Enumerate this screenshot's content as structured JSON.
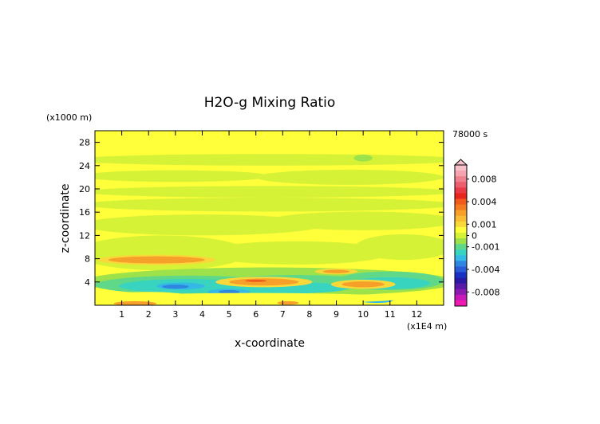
{
  "chart_data": {
    "type": "heatmap",
    "title": "H2O-g Mixing Ratio",
    "xlabel": "x-coordinate",
    "ylabel": "z-coordinate",
    "x_unit_label": "(x1E4 m)",
    "y_unit_label": "(x1000 m)",
    "time_label": "78000 s",
    "xlim": [
      0,
      13
    ],
    "ylim": [
      0,
      30
    ],
    "xticks": [
      "1",
      "2",
      "3",
      "4",
      "5",
      "6",
      "7",
      "8",
      "9",
      "10",
      "11",
      "12"
    ],
    "yticks": [
      "4",
      "8",
      "12",
      "16",
      "20",
      "24",
      "28"
    ],
    "colorbar": {
      "labels": [
        {
          "text": "0.008",
          "value": 0.008
        },
        {
          "text": "0.004",
          "value": 0.004
        },
        {
          "text": "0.001",
          "value": 0.001
        },
        {
          "text": "0",
          "value": 0.0
        },
        {
          "text": "-0.001",
          "value": -0.001
        },
        {
          "text": "-0.004",
          "value": -0.004
        },
        {
          "text": "-0.008",
          "value": -0.008
        }
      ],
      "levels": [
        {
          "value": 0.01,
          "color": "#f5c0c8"
        },
        {
          "value": 0.009,
          "color": "#f3a4ae"
        },
        {
          "value": 0.008,
          "color": "#ef808d"
        },
        {
          "value": 0.007,
          "color": "#ec5e6e"
        },
        {
          "value": 0.006,
          "color": "#ea3a48"
        },
        {
          "value": 0.005,
          "color": "#e8251e"
        },
        {
          "value": 0.004,
          "color": "#f05a1c"
        },
        {
          "value": 0.003,
          "color": "#f47c20"
        },
        {
          "value": 0.002,
          "color": "#f6a02a"
        },
        {
          "value": 0.0015,
          "color": "#f8bd34"
        },
        {
          "value": 0.001,
          "color": "#f9d83a"
        },
        {
          "value": 0.0005,
          "color": "#ffff3a"
        },
        {
          "value": 0.0,
          "color": "#d6f236"
        },
        {
          "value": -0.0005,
          "color": "#9de24a"
        },
        {
          "value": -0.001,
          "color": "#5fd88a"
        },
        {
          "value": -0.0015,
          "color": "#38d4c0"
        },
        {
          "value": -0.002,
          "color": "#34b8e6"
        },
        {
          "value": -0.003,
          "color": "#2e86e0"
        },
        {
          "value": -0.004,
          "color": "#2a5cd8"
        },
        {
          "value": -0.005,
          "color": "#1a32c4"
        },
        {
          "value": -0.006,
          "color": "#2a1aa6"
        },
        {
          "value": -0.007,
          "color": "#5a1aa8"
        },
        {
          "value": -0.008,
          "color": "#8a1ab0"
        },
        {
          "value": -0.009,
          "color": "#c81ab8"
        },
        {
          "value": -0.01,
          "color": "#f01ab0"
        }
      ]
    },
    "background_value_color": "#ffff3a",
    "regions": [
      {
        "xc": 6.5,
        "zc": 25.0,
        "rx": 7.5,
        "rz": 1.0,
        "color": "#d6f236"
      },
      {
        "xc": 3.0,
        "zc": 22.2,
        "rx": 3.5,
        "rz": 1.0,
        "color": "#d6f236"
      },
      {
        "xc": 9.5,
        "zc": 22.0,
        "rx": 3.5,
        "rz": 1.3,
        "color": "#d6f236"
      },
      {
        "xc": 6.5,
        "zc": 19.5,
        "rx": 7.0,
        "rz": 1.0,
        "color": "#d6f236"
      },
      {
        "xc": 6.5,
        "zc": 17.3,
        "rx": 7.0,
        "rz": 1.2,
        "color": "#d6f236"
      },
      {
        "xc": 4.0,
        "zc": 13.8,
        "rx": 4.5,
        "rz": 1.8,
        "color": "#d6f236"
      },
      {
        "xc": 10.0,
        "zc": 14.5,
        "rx": 3.5,
        "rz": 1.6,
        "color": "#d6f236"
      },
      {
        "xc": 2.5,
        "zc": 9.0,
        "rx": 3.2,
        "rz": 3.0,
        "color": "#d6f236"
      },
      {
        "xc": 7.5,
        "zc": 9.0,
        "rx": 3.5,
        "rz": 2.0,
        "color": "#d6f236"
      },
      {
        "xc": 11.5,
        "zc": 10.0,
        "rx": 1.8,
        "rz": 2.2,
        "color": "#d6f236"
      },
      {
        "xc": 6.5,
        "zc": 4.0,
        "rx": 7.0,
        "rz": 2.5,
        "color": "#9de24a"
      },
      {
        "xc": 3.5,
        "zc": 3.5,
        "rx": 3.5,
        "rz": 1.6,
        "color": "#5fd88a"
      },
      {
        "xc": 7.5,
        "zc": 3.8,
        "rx": 3.0,
        "rz": 1.4,
        "color": "#5fd88a"
      },
      {
        "xc": 11.0,
        "zc": 4.2,
        "rx": 2.0,
        "rz": 1.6,
        "color": "#5fd88a"
      },
      {
        "xc": 3.5,
        "zc": 3.3,
        "rx": 2.6,
        "rz": 1.2,
        "color": "#38d4c0"
      },
      {
        "xc": 7.0,
        "zc": 3.0,
        "rx": 2.5,
        "rz": 1.0,
        "color": "#38d4c0"
      },
      {
        "xc": 11.0,
        "zc": 3.8,
        "rx": 1.5,
        "rz": 1.0,
        "color": "#38d4c0"
      },
      {
        "xc": 3.2,
        "zc": 3.3,
        "rx": 0.9,
        "rz": 0.6,
        "color": "#34b8e6"
      },
      {
        "xc": 5.0,
        "zc": 2.3,
        "rx": 0.8,
        "rz": 0.5,
        "color": "#34b8e6"
      },
      {
        "xc": 3.0,
        "zc": 3.2,
        "rx": 0.5,
        "rz": 0.35,
        "color": "#2e86e0"
      },
      {
        "xc": 5.0,
        "zc": 2.3,
        "rx": 0.4,
        "rz": 0.3,
        "color": "#2e86e0"
      },
      {
        "xc": 10.5,
        "zc": 0.8,
        "rx": 0.6,
        "rz": 0.4,
        "color": "#34b8e6"
      },
      {
        "xc": 6.0,
        "zc": 1.2,
        "rx": 5.5,
        "rz": 0.9,
        "color": "#ffff3a"
      },
      {
        "xc": 2.0,
        "zc": 1.5,
        "rx": 1.5,
        "rz": 0.8,
        "color": "#ffff3a"
      },
      {
        "xc": 6.3,
        "zc": 4.0,
        "rx": 1.8,
        "rz": 0.9,
        "color": "#f9d83a"
      },
      {
        "xc": 6.3,
        "zc": 4.0,
        "rx": 1.3,
        "rz": 0.6,
        "color": "#f6a02a"
      },
      {
        "xc": 6.0,
        "zc": 4.2,
        "rx": 0.4,
        "rz": 0.2,
        "color": "#f05a1c"
      },
      {
        "xc": 10.0,
        "zc": 3.6,
        "rx": 1.2,
        "rz": 0.8,
        "color": "#f9d83a"
      },
      {
        "xc": 10.0,
        "zc": 3.6,
        "rx": 0.8,
        "rz": 0.5,
        "color": "#f6a02a"
      },
      {
        "xc": 9.0,
        "zc": 5.8,
        "rx": 0.8,
        "rz": 0.5,
        "color": "#f9d83a"
      },
      {
        "xc": 9.0,
        "zc": 5.8,
        "rx": 0.5,
        "rz": 0.3,
        "color": "#f6a02a"
      },
      {
        "xc": 2.3,
        "zc": 7.8,
        "rx": 2.2,
        "rz": 0.9,
        "color": "#f9d83a"
      },
      {
        "xc": 2.3,
        "zc": 7.8,
        "rx": 1.8,
        "rz": 0.6,
        "color": "#f6a02a"
      },
      {
        "xc": 1.5,
        "zc": 0.3,
        "rx": 0.8,
        "rz": 0.4,
        "color": "#f6a02a"
      },
      {
        "xc": 7.2,
        "zc": 0.4,
        "rx": 0.4,
        "rz": 0.3,
        "color": "#f6a02a"
      },
      {
        "xc": 10.0,
        "zc": 25.3,
        "rx": 0.35,
        "rz": 0.6,
        "color": "#9de24a"
      }
    ]
  }
}
